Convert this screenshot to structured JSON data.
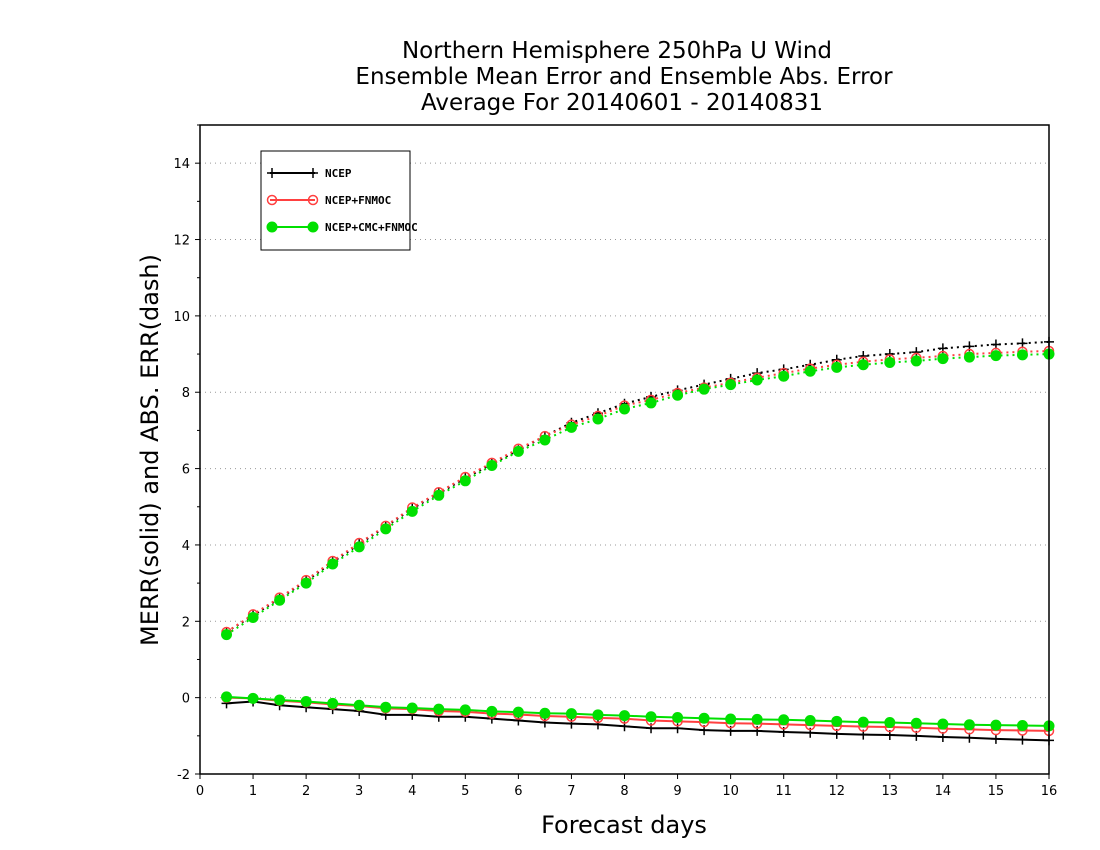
{
  "chart_data": {
    "type": "line",
    "title": [
      "Northern Hemisphere 250hPa U Wind",
      "Ensemble Mean Error and Ensemble Abs. Error",
      "Average For 20140601 - 20140831"
    ],
    "xlabel": "Forecast days",
    "ylabel": "MERR(solid) and ABS. ERR(dash)",
    "xlim": [
      0,
      16
    ],
    "ylim": [
      -2,
      15
    ],
    "xticks": [
      "0",
      "1",
      "2",
      "3",
      "4",
      "5",
      "6",
      "7",
      "8",
      "9",
      "10",
      "11",
      "12",
      "13",
      "14",
      "15",
      "16"
    ],
    "yticks": [
      "-2",
      "0",
      "2",
      "4",
      "6",
      "8",
      "10",
      "12",
      "14"
    ],
    "grid": "horizontal dotted",
    "legend_position": "top-left",
    "x": [
      0.5,
      1,
      1.5,
      2,
      2.5,
      3,
      3.5,
      4,
      4.5,
      5,
      5.5,
      6,
      6.5,
      7,
      7.5,
      8,
      8.5,
      9,
      9.5,
      10,
      10.5,
      11,
      11.5,
      12,
      12.5,
      13,
      13.5,
      14,
      14.5,
      15,
      15.5,
      16
    ],
    "series": [
      {
        "name": "NCEP",
        "color": "#000000",
        "marker": "plus",
        "merr": [
          -0.15,
          -0.1,
          -0.2,
          -0.25,
          -0.3,
          -0.35,
          -0.45,
          -0.45,
          -0.5,
          -0.5,
          -0.55,
          -0.6,
          -0.65,
          -0.68,
          -0.7,
          -0.75,
          -0.8,
          -0.8,
          -0.85,
          -0.87,
          -0.87,
          -0.9,
          -0.92,
          -0.95,
          -0.97,
          -0.98,
          -1.0,
          -1.03,
          -1.05,
          -1.08,
          -1.1,
          -1.12
        ],
        "abs_err": [
          1.72,
          2.15,
          2.6,
          3.05,
          3.55,
          4.02,
          4.48,
          4.95,
          5.35,
          5.75,
          6.12,
          6.48,
          6.85,
          7.2,
          7.45,
          7.7,
          7.88,
          8.05,
          8.2,
          8.35,
          8.5,
          8.6,
          8.72,
          8.85,
          8.95,
          9.0,
          9.05,
          9.15,
          9.2,
          9.25,
          9.28,
          9.32
        ]
      },
      {
        "name": "NCEP+FNMOC",
        "color": "#ff4040",
        "marker": "open-circle",
        "merr": [
          0.0,
          -0.02,
          -0.08,
          -0.12,
          -0.18,
          -0.22,
          -0.28,
          -0.3,
          -0.35,
          -0.37,
          -0.42,
          -0.44,
          -0.48,
          -0.5,
          -0.53,
          -0.55,
          -0.6,
          -0.62,
          -0.64,
          -0.67,
          -0.68,
          -0.7,
          -0.72,
          -0.74,
          -0.76,
          -0.77,
          -0.79,
          -0.81,
          -0.83,
          -0.85,
          -0.86,
          -0.87
        ],
        "abs_err": [
          1.72,
          2.18,
          2.62,
          3.08,
          3.58,
          4.05,
          4.5,
          4.98,
          5.38,
          5.78,
          6.15,
          6.52,
          6.85,
          7.15,
          7.38,
          7.65,
          7.8,
          7.98,
          8.12,
          8.25,
          8.38,
          8.5,
          8.62,
          8.72,
          8.8,
          8.86,
          8.9,
          8.95,
          9.0,
          9.03,
          9.06,
          9.08
        ]
      },
      {
        "name": "NCEP+CMC+FNMOC",
        "color": "#00e000",
        "marker": "filled-circle",
        "merr": [
          0.02,
          -0.02,
          -0.06,
          -0.1,
          -0.15,
          -0.2,
          -0.25,
          -0.27,
          -0.3,
          -0.32,
          -0.36,
          -0.38,
          -0.41,
          -0.42,
          -0.45,
          -0.47,
          -0.5,
          -0.52,
          -0.54,
          -0.56,
          -0.57,
          -0.58,
          -0.6,
          -0.62,
          -0.64,
          -0.65,
          -0.67,
          -0.69,
          -0.71,
          -0.72,
          -0.73,
          -0.74
        ],
        "abs_err": [
          1.65,
          2.1,
          2.55,
          3.0,
          3.5,
          3.95,
          4.42,
          4.88,
          5.3,
          5.68,
          6.08,
          6.45,
          6.75,
          7.08,
          7.3,
          7.56,
          7.72,
          7.92,
          8.08,
          8.2,
          8.32,
          8.42,
          8.55,
          8.65,
          8.72,
          8.78,
          8.82,
          8.88,
          8.92,
          8.96,
          8.98,
          9.0
        ]
      }
    ]
  }
}
